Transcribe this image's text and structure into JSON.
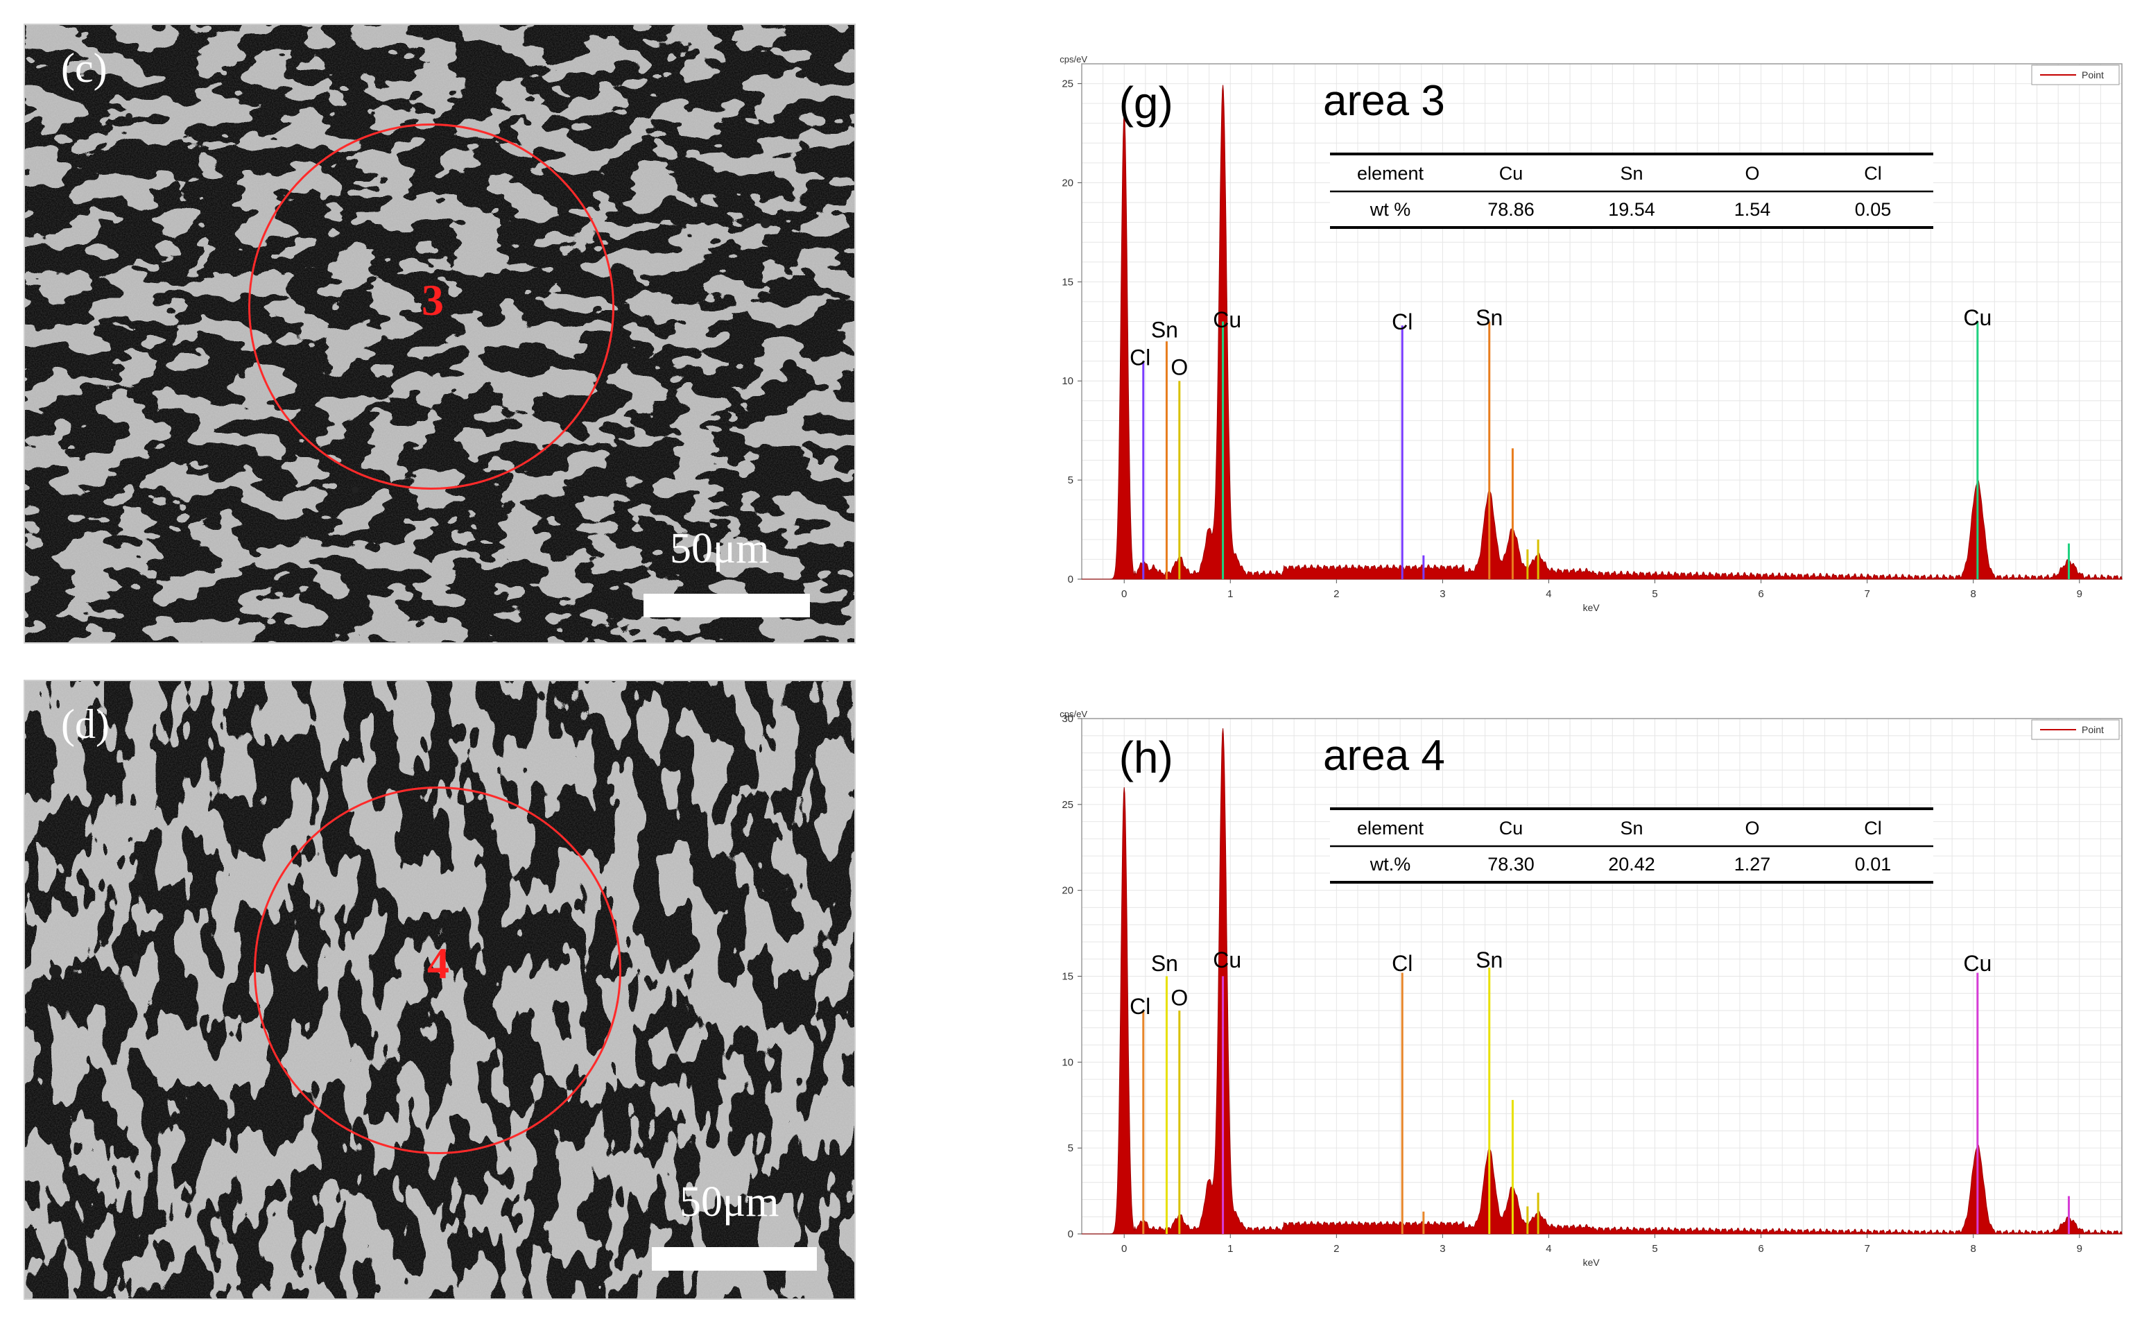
{
  "micrographs": [
    {
      "panel_label": "(c)",
      "area_label": "3",
      "scale_label": "50μm"
    },
    {
      "panel_label": "(d)",
      "area_label": "4",
      "scale_label": "50μm"
    }
  ],
  "chart_data": [
    {
      "type": "area",
      "panel_label": "(g)",
      "title": "area 3",
      "ylabel": "cps/eV",
      "xlabel": "keV",
      "legend": "Point",
      "legend_position": "top-right",
      "grid": true,
      "xlim": [
        -0.4,
        9.4
      ],
      "ylim": [
        0,
        26
      ],
      "x_ticks": [
        0,
        1,
        2,
        3,
        4,
        5,
        6,
        7,
        8,
        9
      ],
      "y_ticks": [
        0,
        5,
        10,
        15,
        20,
        25
      ],
      "spectrum_peaks": [
        {
          "x": 0.0,
          "y": 23.5,
          "w": 0.03
        },
        {
          "x": 0.18,
          "y": 0.6,
          "w": 0.03
        },
        {
          "x": 0.28,
          "y": 0.3,
          "w": 0.03
        },
        {
          "x": 0.52,
          "y": 0.8,
          "w": 0.04
        },
        {
          "x": 0.8,
          "y": 2.2,
          "w": 0.04
        },
        {
          "x": 0.93,
          "y": 24.5,
          "w": 0.035
        },
        {
          "x": 1.05,
          "y": 0.8,
          "w": 0.04
        },
        {
          "x": 3.44,
          "y": 4.0,
          "w": 0.05
        },
        {
          "x": 3.66,
          "y": 2.1,
          "w": 0.05
        },
        {
          "x": 3.9,
          "y": 0.8,
          "w": 0.05
        },
        {
          "x": 8.04,
          "y": 4.8,
          "w": 0.055
        },
        {
          "x": 8.9,
          "y": 0.8,
          "w": 0.06
        }
      ],
      "background": {
        "start": 0.1,
        "level_low": 0.3,
        "level_mid": 0.6
      },
      "element_lines": [
        {
          "element": "Cl",
          "color": "#7a3cff",
          "lines": [
            [
              0.18,
              11.0
            ],
            [
              2.62,
              12.8
            ],
            [
              2.82,
              1.2
            ]
          ]
        },
        {
          "element": "Sn",
          "color": "#e87d1e",
          "lines": [
            [
              0.4,
              12.0
            ],
            [
              3.44,
              13.0
            ],
            [
              3.66,
              6.6
            ]
          ]
        },
        {
          "element": "O",
          "color": "#d8c000",
          "lines": [
            [
              0.52,
              10.0
            ],
            [
              3.9,
              2.0
            ],
            [
              3.8,
              1.5
            ]
          ]
        },
        {
          "element": "Cu",
          "color": "#1fd17f",
          "lines": [
            [
              0.93,
              13.0
            ],
            [
              8.04,
              13.0
            ],
            [
              8.9,
              1.8
            ]
          ]
        }
      ],
      "peak_labels": [
        {
          "text": "Cl",
          "x": 0.15,
          "y": 10.8
        },
        {
          "text": "Sn",
          "x": 0.38,
          "y": 12.2
        },
        {
          "text": "O",
          "x": 0.52,
          "y": 10.3
        },
        {
          "text": "Cu",
          "x": 0.97,
          "y": 12.7
        },
        {
          "text": "Cl",
          "x": 2.62,
          "y": 12.6
        },
        {
          "text": "Sn",
          "x": 3.44,
          "y": 12.8
        },
        {
          "text": "Cu",
          "x": 8.04,
          "y": 12.8
        }
      ],
      "table": {
        "headers": [
          "element",
          "Cu",
          "Sn",
          "O",
          "Cl"
        ],
        "row_label": "wt %",
        "values": [
          "78.86",
          "19.54",
          "1.54",
          "0.05"
        ]
      }
    },
    {
      "type": "area",
      "panel_label": "(h)",
      "title": "area 4",
      "ylabel": "cps/eV",
      "xlabel": "keV",
      "legend": "Point",
      "legend_position": "top-right",
      "grid": true,
      "xlim": [
        -0.4,
        9.4
      ],
      "ylim": [
        0,
        30
      ],
      "x_ticks": [
        0,
        1,
        2,
        3,
        4,
        5,
        6,
        7,
        8,
        9
      ],
      "y_ticks": [
        0,
        5,
        10,
        15,
        20,
        25,
        30
      ],
      "spectrum_peaks": [
        {
          "x": 0.0,
          "y": 26.0,
          "w": 0.03
        },
        {
          "x": 0.18,
          "y": 0.5,
          "w": 0.03
        },
        {
          "x": 0.52,
          "y": 0.8,
          "w": 0.04
        },
        {
          "x": 0.8,
          "y": 2.8,
          "w": 0.04
        },
        {
          "x": 0.93,
          "y": 29.0,
          "w": 0.035
        },
        {
          "x": 1.05,
          "y": 0.8,
          "w": 0.04
        },
        {
          "x": 3.44,
          "y": 4.5,
          "w": 0.05
        },
        {
          "x": 3.66,
          "y": 2.3,
          "w": 0.05
        },
        {
          "x": 3.9,
          "y": 0.8,
          "w": 0.05
        },
        {
          "x": 8.04,
          "y": 5.0,
          "w": 0.055
        },
        {
          "x": 8.9,
          "y": 0.8,
          "w": 0.06
        }
      ],
      "background": {
        "start": 0.1,
        "level_low": 0.3,
        "level_mid": 0.6
      },
      "element_lines": [
        {
          "element": "Cl",
          "color": "#e8862a",
          "lines": [
            [
              0.18,
              13.0
            ],
            [
              2.62,
              15.2
            ],
            [
              2.82,
              1.3
            ]
          ]
        },
        {
          "element": "Sn",
          "color": "#e8e000",
          "lines": [
            [
              0.4,
              15.0
            ],
            [
              3.44,
              15.5
            ],
            [
              3.66,
              7.8
            ]
          ]
        },
        {
          "element": "O",
          "color": "#d8c000",
          "lines": [
            [
              0.52,
              13.0
            ],
            [
              3.9,
              2.4
            ],
            [
              3.8,
              1.6
            ]
          ]
        },
        {
          "element": "Cu",
          "color": "#d63cd6",
          "lines": [
            [
              0.93,
              15.0
            ],
            [
              8.04,
              15.2
            ],
            [
              8.9,
              2.2
            ]
          ]
        }
      ],
      "peak_labels": [
        {
          "text": "Cl",
          "x": 0.15,
          "y": 12.8
        },
        {
          "text": "Sn",
          "x": 0.38,
          "y": 15.3
        },
        {
          "text": "O",
          "x": 0.52,
          "y": 13.3
        },
        {
          "text": "Cu",
          "x": 0.97,
          "y": 15.5
        },
        {
          "text": "Cl",
          "x": 2.62,
          "y": 15.3
        },
        {
          "text": "Sn",
          "x": 3.44,
          "y": 15.5
        },
        {
          "text": "Cu",
          "x": 8.04,
          "y": 15.3
        }
      ],
      "table": {
        "headers": [
          "element",
          "Cu",
          "Sn",
          "O",
          "Cl"
        ],
        "row_label": "wt.%",
        "values": [
          "78.30",
          "20.42",
          "1.27",
          "0.01"
        ]
      }
    }
  ]
}
